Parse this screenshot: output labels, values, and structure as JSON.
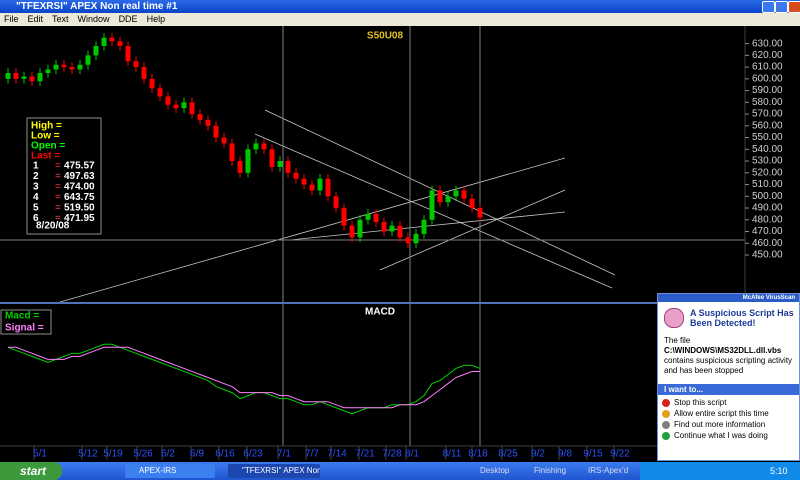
{
  "window": {
    "title": "\"TFEXRSI\" APEX Non real time #1",
    "menu": [
      "File",
      "Edit",
      "Text",
      "Window",
      "DDE",
      "Help"
    ]
  },
  "chart_data": [
    {
      "type": "candlestick",
      "title": "S50U08",
      "open": [
        600,
        605,
        600,
        602,
        598,
        605,
        608,
        612,
        610,
        608,
        612,
        620,
        628,
        635,
        632,
        628,
        615,
        610,
        600,
        592,
        585,
        578,
        575,
        580,
        570,
        565,
        560,
        550,
        545,
        530,
        520,
        540,
        545,
        540,
        525,
        530,
        520,
        515,
        510,
        505,
        515,
        500,
        490,
        475,
        465,
        480,
        485,
        478,
        470,
        475,
        465,
        460,
        468,
        480,
        505,
        495,
        500,
        505,
        498,
        490
      ],
      "high": [
        609,
        609,
        606,
        606,
        609,
        612,
        616,
        616,
        614,
        616,
        624,
        632,
        639,
        639,
        636,
        632,
        619,
        614,
        604,
        596,
        589,
        582,
        584,
        584,
        574,
        569,
        564,
        554,
        549,
        534,
        544,
        549,
        549,
        544,
        534,
        534,
        524,
        519,
        514,
        519,
        519,
        504,
        494,
        479,
        484,
        489,
        489,
        482,
        479,
        479,
        469,
        472,
        484,
        509,
        509,
        504,
        509,
        509,
        502,
        494
      ],
      "low": [
        596,
        596,
        596,
        594,
        594,
        601,
        604,
        606,
        604,
        604,
        608,
        616,
        624,
        628,
        624,
        611,
        606,
        596,
        588,
        581,
        574,
        571,
        571,
        566,
        561,
        556,
        546,
        541,
        526,
        516,
        516,
        536,
        536,
        521,
        521,
        516,
        511,
        506,
        501,
        501,
        496,
        486,
        471,
        461,
        461,
        476,
        474,
        466,
        466,
        461,
        456,
        456,
        464,
        476,
        491,
        491,
        496,
        494,
        486,
        478
      ],
      "close": [
        605,
        600,
        602,
        598,
        605,
        608,
        612,
        610,
        608,
        612,
        620,
        628,
        635,
        632,
        628,
        615,
        610,
        600,
        592,
        585,
        578,
        575,
        580,
        570,
        565,
        560,
        550,
        545,
        530,
        520,
        540,
        545,
        540,
        525,
        530,
        520,
        515,
        510,
        505,
        515,
        500,
        490,
        475,
        465,
        480,
        485,
        478,
        470,
        475,
        465,
        460,
        468,
        480,
        505,
        495,
        500,
        505,
        498,
        490,
        482
      ],
      "up_color": "#00c800",
      "down_color": "#ff0000",
      "ylim": [
        410,
        645
      ],
      "yticks": [
        {
          "value": 450,
          "label": "450.00"
        },
        {
          "value": 460,
          "label": "460.00"
        },
        {
          "value": 470,
          "label": "470.00"
        },
        {
          "value": 480,
          "label": "480.00"
        },
        {
          "value": 490,
          "label": "490.00"
        },
        {
          "value": 500,
          "label": "500.00"
        },
        {
          "value": 510,
          "label": "510.00"
        },
        {
          "value": 520,
          "label": "520.00"
        },
        {
          "value": 530,
          "label": "530.00"
        },
        {
          "value": 540,
          "label": "540.00"
        },
        {
          "value": 550,
          "label": "550.00"
        },
        {
          "value": 560,
          "label": "560.00"
        },
        {
          "value": 570,
          "label": "570.00"
        },
        {
          "value": 580,
          "label": "580.00"
        },
        {
          "value": 590,
          "label": "590.00"
        },
        {
          "value": 600,
          "label": "600.00"
        },
        {
          "value": 610,
          "label": "610.00"
        },
        {
          "value": 620,
          "label": "620.00"
        },
        {
          "value": 630,
          "label": "630.00"
        }
      ],
      "date_labels": [
        "5/1",
        "5/12",
        "5/19",
        "5/26",
        "6/2",
        "6/9",
        "6/16",
        "6/23",
        "7/1",
        "7/7",
        "7/14",
        "7/21",
        "7/28",
        "8/1",
        "8/11",
        "8/18",
        "8/25",
        "9/2",
        "9/8",
        "9/15",
        "9/22"
      ]
    },
    {
      "type": "line",
      "title": "MACD",
      "ylim": [
        -30,
        15
      ],
      "series": [
        {
          "name": "Macd =",
          "color": "#00d000",
          "values": [
            2,
            1,
            0,
            -1,
            -2,
            -3,
            -2,
            -1,
            0,
            0,
            1,
            2,
            3,
            3,
            2,
            1,
            0,
            -1,
            -2,
            -3,
            -4,
            -5,
            -6,
            -7,
            -8,
            -9,
            -11,
            -12,
            -13,
            -15,
            -14,
            -13,
            -13,
            -14,
            -15,
            -15,
            -16,
            -17,
            -17,
            -16,
            -17,
            -18,
            -19,
            -20,
            -19,
            -18,
            -18,
            -18,
            -17,
            -17,
            -17,
            -16,
            -14,
            -10,
            -9,
            -7,
            -5,
            -4,
            -4,
            -5
          ]
        },
        {
          "name": "Signal =",
          "color": "#ff80ff",
          "values": [
            2,
            2,
            1,
            0,
            -1,
            -2,
            -2,
            -2,
            -1,
            -1,
            0,
            1,
            2,
            2,
            2,
            2,
            1,
            0,
            -1,
            -2,
            -3,
            -4,
            -5,
            -6,
            -7,
            -8,
            -9,
            -10,
            -11,
            -13,
            -13,
            -13,
            -13,
            -13,
            -14,
            -14,
            -15,
            -16,
            -16,
            -16,
            -16,
            -17,
            -18,
            -18,
            -18,
            -18,
            -18,
            -18,
            -18,
            -17,
            -17,
            -17,
            -16,
            -14,
            -12,
            -10,
            -8,
            -7,
            -6,
            -6
          ]
        }
      ]
    }
  ],
  "info_box": {
    "fields": [
      {
        "text": "High =",
        "color": "#ffff00"
      },
      {
        "text": "Low =",
        "color": "#ffff00"
      },
      {
        "text": "Open =",
        "color": "#00ff00"
      },
      {
        "text": "Last =",
        "color": "#ff0000"
      }
    ],
    "levels": [
      {
        "label": "1",
        "value": "475.57"
      },
      {
        "label": "2",
        "value": "497.63"
      },
      {
        "label": "3",
        "value": "474.00"
      },
      {
        "label": "4",
        "value": "643.75"
      },
      {
        "label": "5",
        "value": "519.50"
      },
      {
        "label": "6",
        "value": "471.95"
      }
    ],
    "equals": "=",
    "date": "8/20/08"
  },
  "popup": {
    "product": "McAfee VirusScan",
    "title": "A Suspicious Script Has Been Detected!",
    "body_prefix": "The file ",
    "file": "C:\\WINDOWS\\MS32DLL.dll.vbs",
    "body_suffix": " contains suspicious scripting activity and has been stopped",
    "section": "I want to...",
    "options": [
      "Stop this script",
      "Allow entire script this time",
      "Find out more information",
      "Continue what I was doing"
    ]
  },
  "taskbar": {
    "start": "start",
    "buttons": [
      "APEX-IRS",
      "\"TFEXRSI\" APEX Non ..."
    ],
    "tray_items": [
      "Desktop",
      "Finishing",
      "IRS-Apex'd"
    ],
    "clock": "5:10"
  }
}
